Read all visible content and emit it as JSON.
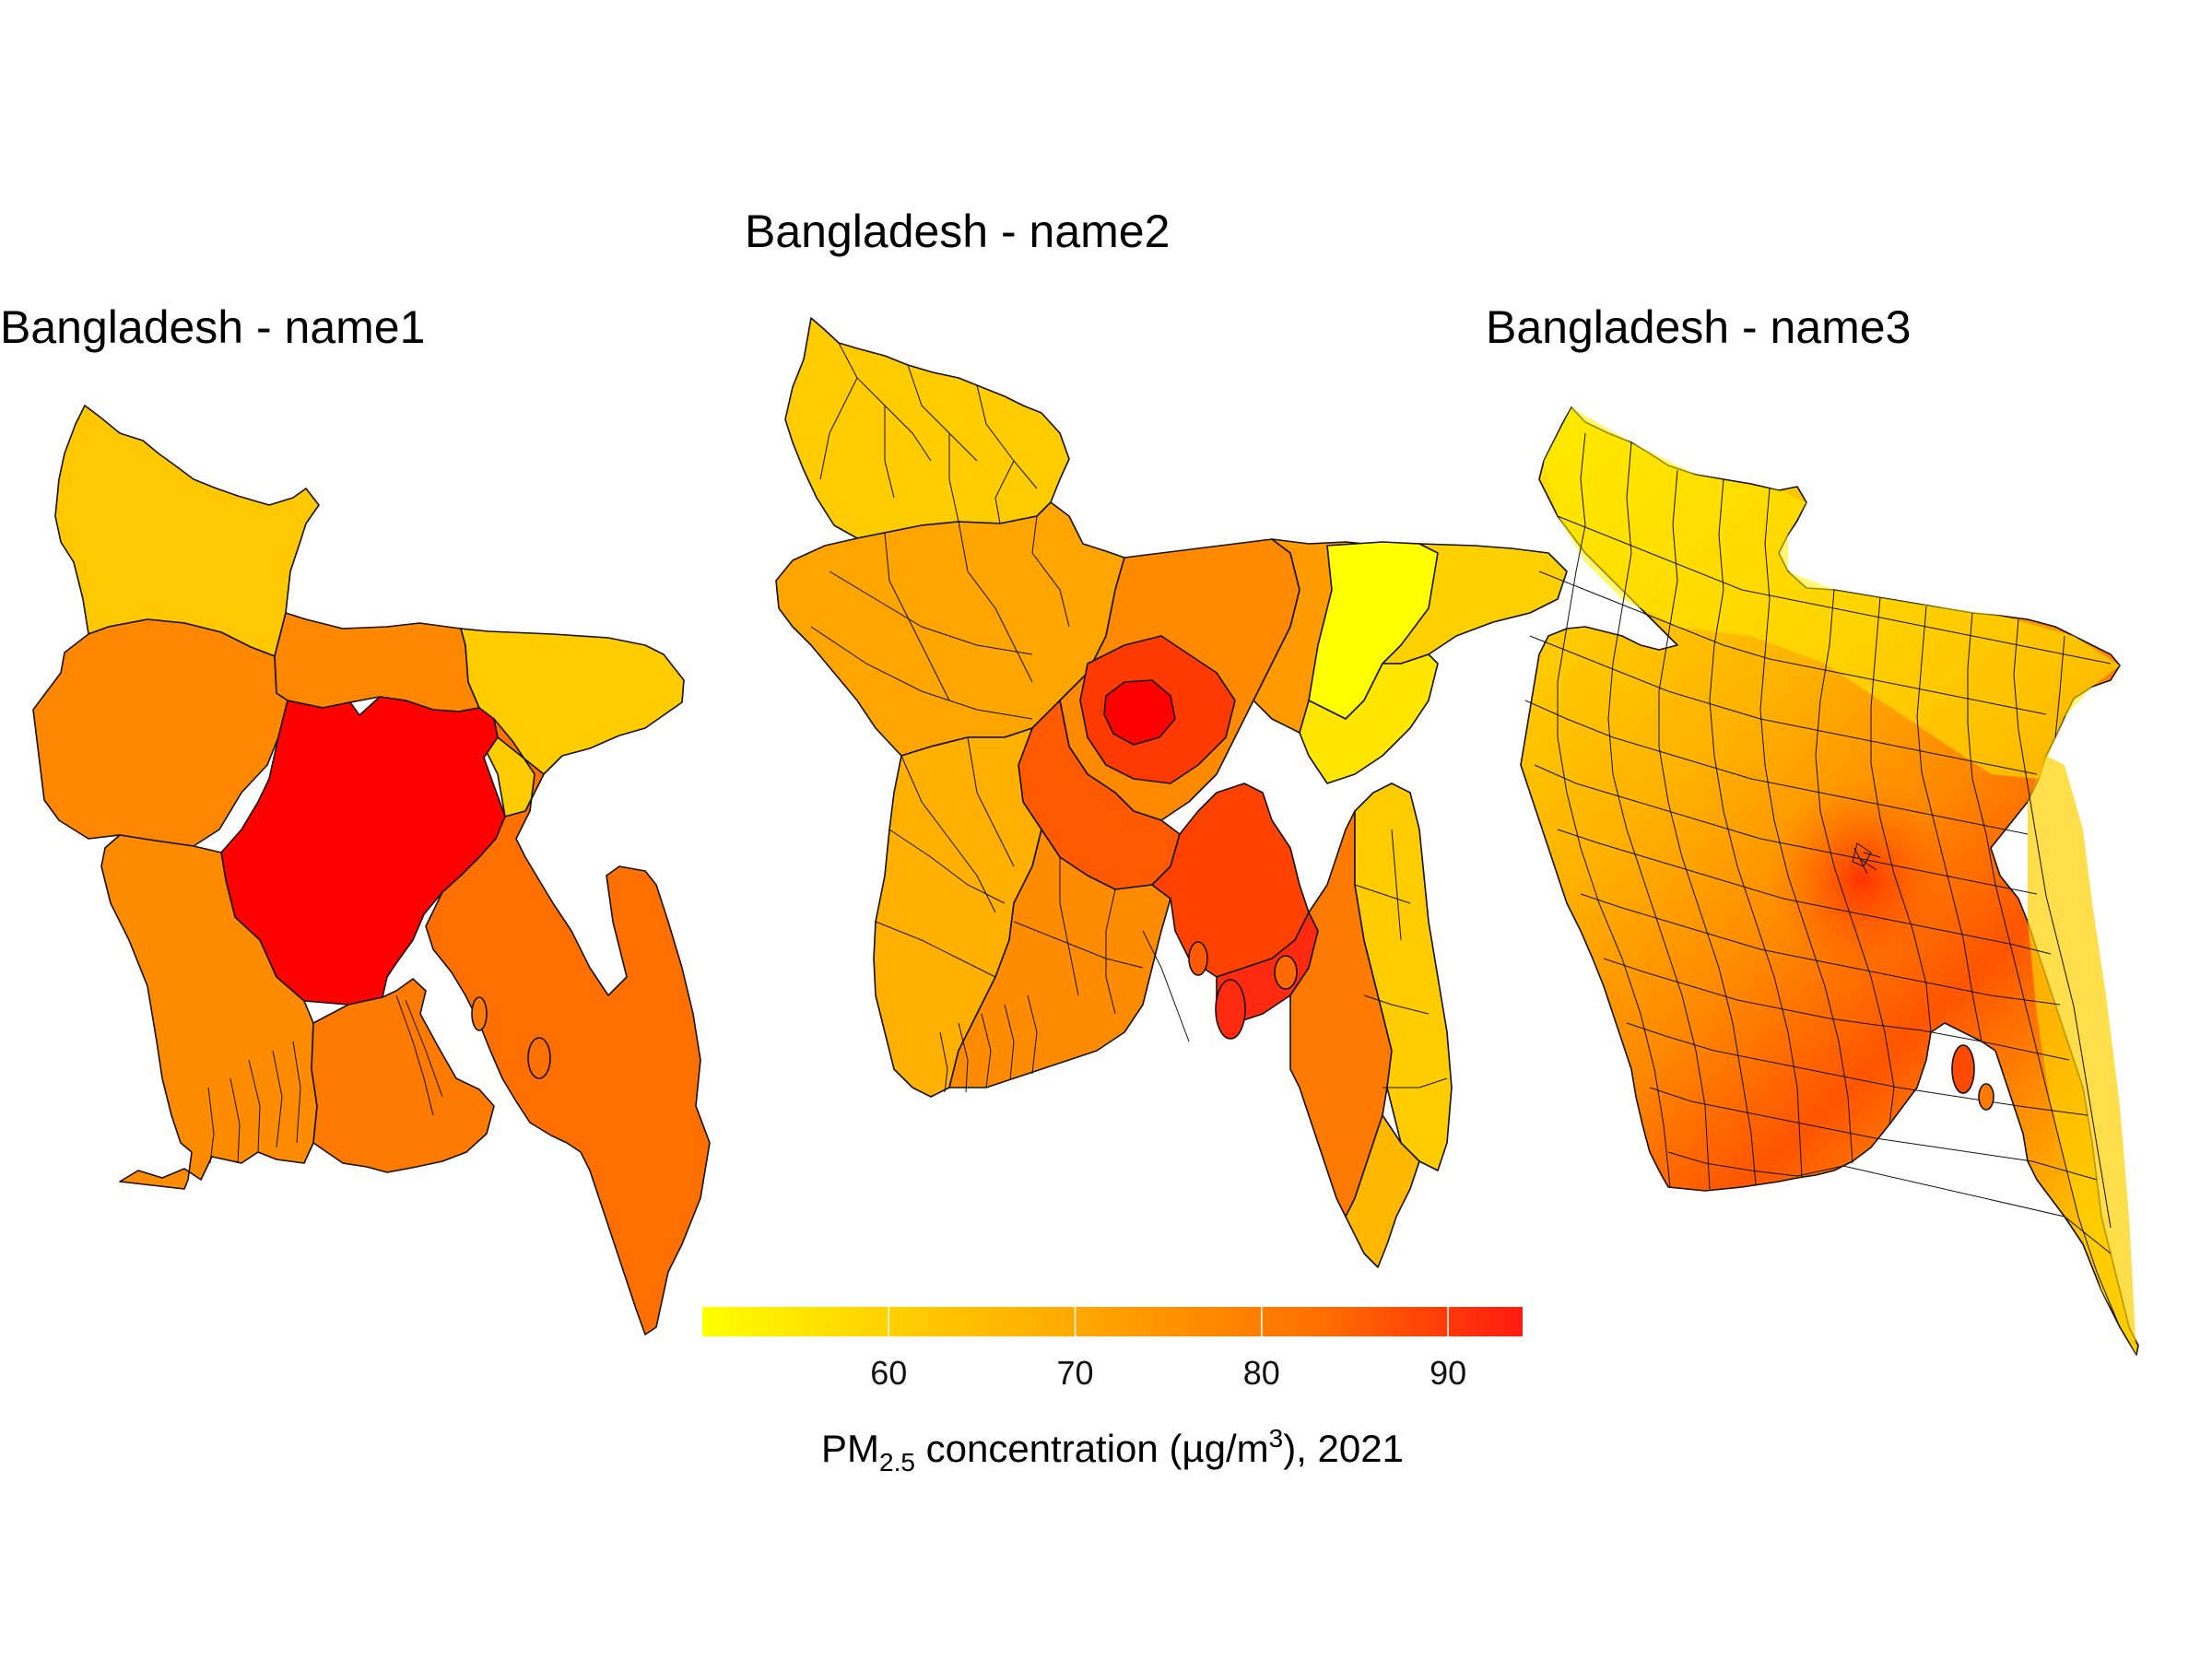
{
  "maps": [
    {
      "title": "Bangladesh - name1",
      "level": "name1"
    },
    {
      "title": "Bangladesh - name2",
      "level": "name2"
    },
    {
      "title": "Bangladesh - name3",
      "level": "name3"
    }
  ],
  "legend": {
    "title_main": "PM",
    "title_sub": "2.5",
    "title_rest": " concentration (µg/m",
    "title_sup": "3",
    "title_end": "), 2021",
    "min": 50,
    "max": 94,
    "ticks": [
      {
        "value": 60,
        "label": "60"
      },
      {
        "value": 70,
        "label": "70"
      },
      {
        "value": 80,
        "label": "80"
      },
      {
        "value": 90,
        "label": "90"
      }
    ]
  },
  "colors": {
    "low": "#ffff00",
    "mid_low": "#ffcc00",
    "mid": "#ff9900",
    "mid_high": "#ff6600",
    "high": "#ff0000",
    "outline": "#111111"
  },
  "region_values": {
    "name1": {
      "rangpur": 62,
      "rajshahi": 74,
      "mymensingh": 76,
      "sylhet": 64,
      "khulna": 74,
      "dhaka": 93,
      "barisal": 82,
      "chittagong": 82
    }
  }
}
